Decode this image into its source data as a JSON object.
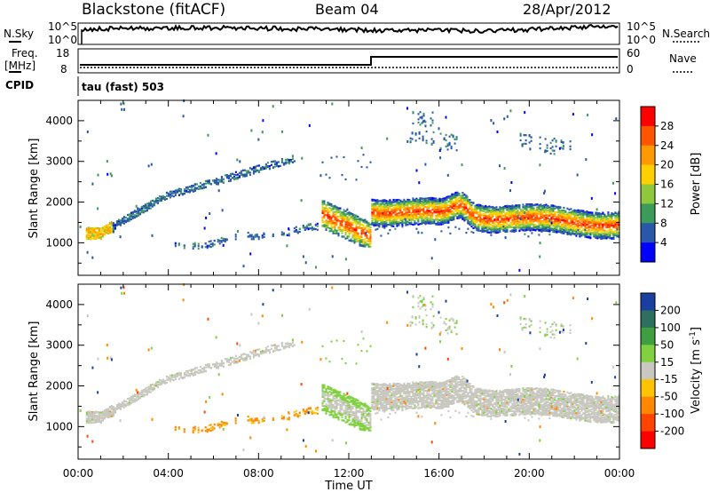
{
  "header": {
    "station": "Blackstone (fitACF)",
    "beam": "Beam 04",
    "date": "28/Apr/2012"
  },
  "top_panels": {
    "nsky_label": "N.Sky",
    "nsearch_label": "N.Search",
    "freq_label_line1": "Freq.",
    "freq_label_line2": "[MHz]",
    "cpid_label": "CPID",
    "nave_label": "Nave",
    "noise_tick_top": "10^5",
    "noise_tick_bottom": "10^0",
    "freq_tick_top": "18",
    "freq_tick_bottom": "8",
    "nave_tick_top": "60",
    "nave_tick_bottom": "0",
    "cpid_text": "tau (fast) 503"
  },
  "colorbars": {
    "power": {
      "label": "Power [dB]",
      "ticks": [
        "28",
        "24",
        "20",
        "16",
        "12",
        "8",
        "4"
      ],
      "colors": [
        "#ff0000",
        "#ff5500",
        "#ff9900",
        "#ffd000",
        "#8fc83c",
        "#3c9a5a",
        "#2a58a8",
        "#0000ff"
      ]
    },
    "velocity": {
      "label_prefix": "Velocity [m s",
      "label_exp": "-1",
      "label_suffix": "]",
      "ticks": [
        "200",
        "100",
        "50",
        "15",
        "-15",
        "-50",
        "-100",
        "-200"
      ],
      "colors": [
        "#1a3fa0",
        "#2f6f60",
        "#3f9f40",
        "#80d040",
        "#c8c8c0",
        "#ffc400",
        "#ff8800",
        "#ff4400",
        "#ff0000"
      ]
    }
  },
  "chart_data": [
    {
      "type": "heatmap",
      "name": "power",
      "ylabel": "Slant Range [km]",
      "y_ticks": [
        "1000",
        "2000",
        "3000",
        "4000"
      ],
      "y_tick_values": [
        1000,
        2000,
        3000,
        4000
      ],
      "ylim": [
        200,
        4500
      ],
      "xlim_hours": [
        0,
        24
      ],
      "features": [
        {
          "t0": 0.4,
          "t1": 3.8,
          "r0": 1200,
          "r1": 2150,
          "desc": "ascending band"
        },
        {
          "t0": 3.8,
          "t1": 9.5,
          "r0": 2150,
          "r1": 3100,
          "desc": "ascending band"
        },
        {
          "t0": 10.8,
          "t1": 12.9,
          "r0": 1800,
          "r1": 1150,
          "desc": "strong descending band"
        },
        {
          "t0": 12.9,
          "t1": 24,
          "r0": 1800,
          "r1": 1500,
          "desc": "strong band"
        }
      ]
    },
    {
      "type": "heatmap",
      "name": "velocity",
      "ylabel": "Slant Range [km]",
      "y_ticks": [
        "1000",
        "2000",
        "3000",
        "4000"
      ],
      "y_tick_values": [
        1000,
        2000,
        3000,
        4000
      ],
      "ylim": [
        200,
        4500
      ],
      "xlim_hours": [
        0,
        24
      ],
      "x_ticks": [
        "00:00",
        "04:00",
        "08:00",
        "12:00",
        "16:00",
        "20:00",
        "00:00"
      ],
      "x_tick_values": [
        0,
        4,
        8,
        12,
        16,
        20,
        24
      ],
      "xlabel": "Time UT"
    }
  ]
}
